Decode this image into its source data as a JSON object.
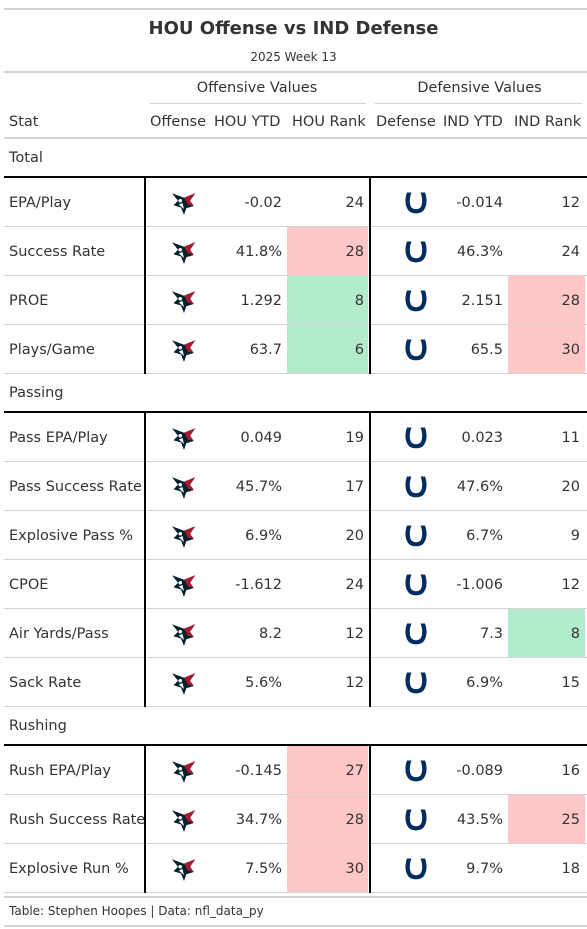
{
  "title": "HOU Offense vs IND Defense",
  "subtitle": "2025 Week 13",
  "spanners": {
    "offense": "Offensive Values",
    "defense": "Defensive Values"
  },
  "columns": {
    "stat": "Stat",
    "offense": "Offense",
    "hou_ytd": "HOU YTD",
    "hou_rank": "HOU Rank",
    "defense": "Defense",
    "ind_ytd": "IND YTD",
    "ind_rank": "IND Rank"
  },
  "colors": {
    "bad": "#ffc7c7",
    "good": "#b3ebcd",
    "texans_navy": "#03202f",
    "texans_red": "#a71930",
    "colts_blue": "#002c5f"
  },
  "offense_logo": "texans-logo-icon",
  "defense_logo": "colts-horseshoe-icon",
  "footer": "Table: Stephen Hoopes | Data: nfl_data_py",
  "chart_data": {
    "type": "table",
    "title": "HOU Offense vs IND Defense",
    "subtitle": "2025 Week 13",
    "columns": [
      "Stat",
      "Offense",
      "HOU YTD",
      "HOU Rank",
      "Defense",
      "IND YTD",
      "IND Rank"
    ],
    "groups": [
      {
        "name": "Total",
        "rows": [
          {
            "stat": "EPA/Play",
            "hou_ytd": "-0.02",
            "hou_rank": 24,
            "hou_rank_color": "",
            "ind_ytd": "-0.014",
            "ind_rank": 12,
            "ind_rank_color": ""
          },
          {
            "stat": "Success Rate",
            "hou_ytd": "41.8%",
            "hou_rank": 28,
            "hou_rank_color": "bad",
            "ind_ytd": "46.3%",
            "ind_rank": 24,
            "ind_rank_color": ""
          },
          {
            "stat": "PROE",
            "hou_ytd": "1.292",
            "hou_rank": 8,
            "hou_rank_color": "good",
            "ind_ytd": "2.151",
            "ind_rank": 28,
            "ind_rank_color": "bad"
          },
          {
            "stat": "Plays/Game",
            "hou_ytd": "63.7",
            "hou_rank": 6,
            "hou_rank_color": "good",
            "ind_ytd": "65.5",
            "ind_rank": 30,
            "ind_rank_color": "bad"
          }
        ]
      },
      {
        "name": "Passing",
        "rows": [
          {
            "stat": "Pass EPA/Play",
            "hou_ytd": "0.049",
            "hou_rank": 19,
            "hou_rank_color": "",
            "ind_ytd": "0.023",
            "ind_rank": 11,
            "ind_rank_color": ""
          },
          {
            "stat": "Pass Success Rate",
            "hou_ytd": "45.7%",
            "hou_rank": 17,
            "hou_rank_color": "",
            "ind_ytd": "47.6%",
            "ind_rank": 20,
            "ind_rank_color": ""
          },
          {
            "stat": "Explosive Pass %",
            "hou_ytd": "6.9%",
            "hou_rank": 20,
            "hou_rank_color": "",
            "ind_ytd": "6.7%",
            "ind_rank": 9,
            "ind_rank_color": ""
          },
          {
            "stat": "CPOE",
            "hou_ytd": "-1.612",
            "hou_rank": 24,
            "hou_rank_color": "",
            "ind_ytd": "-1.006",
            "ind_rank": 12,
            "ind_rank_color": ""
          },
          {
            "stat": "Air Yards/Pass",
            "hou_ytd": "8.2",
            "hou_rank": 12,
            "hou_rank_color": "",
            "ind_ytd": "7.3",
            "ind_rank": 8,
            "ind_rank_color": "good"
          },
          {
            "stat": "Sack Rate",
            "hou_ytd": "5.6%",
            "hou_rank": 12,
            "hou_rank_color": "",
            "ind_ytd": "6.9%",
            "ind_rank": 15,
            "ind_rank_color": ""
          }
        ]
      },
      {
        "name": "Rushing",
        "rows": [
          {
            "stat": "Rush EPA/Play",
            "hou_ytd": "-0.145",
            "hou_rank": 27,
            "hou_rank_color": "bad",
            "ind_ytd": "-0.089",
            "ind_rank": 16,
            "ind_rank_color": ""
          },
          {
            "stat": "Rush Success Rate",
            "hou_ytd": "34.7%",
            "hou_rank": 28,
            "hou_rank_color": "bad",
            "ind_ytd": "43.5%",
            "ind_rank": 25,
            "ind_rank_color": "bad"
          },
          {
            "stat": "Explosive Run %",
            "hou_ytd": "7.5%",
            "hou_rank": 30,
            "hou_rank_color": "bad",
            "ind_ytd": "9.7%",
            "ind_rank": 18,
            "ind_rank_color": ""
          }
        ]
      }
    ]
  }
}
